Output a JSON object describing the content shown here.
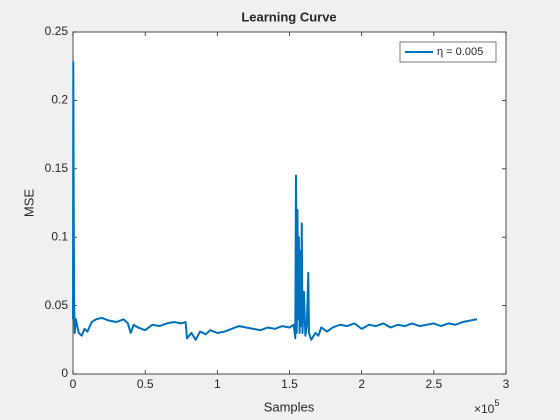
{
  "chart_data": {
    "type": "line",
    "title": "Learning Curve",
    "xlabel": "Samples",
    "ylabel": "MSE",
    "x_multiplier": {
      "base": "×10",
      "exponent": "5"
    },
    "xlim": [
      0,
      3
    ],
    "xticks": [
      0,
      0.5,
      1,
      1.5,
      2,
      2.5,
      3
    ],
    "ylim": [
      0,
      0.25
    ],
    "yticks": [
      0,
      0.05,
      0.1,
      0.15,
      0.2,
      0.25
    ],
    "legend": "upper right",
    "x": [
      0,
      0.002,
      0.005,
      0.008,
      0.012,
      0.02,
      0.04,
      0.06,
      0.08,
      0.1,
      0.13,
      0.16,
      0.2,
      0.25,
      0.3,
      0.35,
      0.38,
      0.4,
      0.42,
      0.45,
      0.5,
      0.55,
      0.6,
      0.65,
      0.7,
      0.75,
      0.78,
      0.79,
      0.82,
      0.85,
      0.88,
      0.92,
      0.95,
      1.0,
      1.05,
      1.1,
      1.15,
      1.2,
      1.25,
      1.3,
      1.35,
      1.4,
      1.45,
      1.5,
      1.53,
      1.54,
      1.545,
      1.55,
      1.555,
      1.56,
      1.565,
      1.57,
      1.575,
      1.58,
      1.585,
      1.59,
      1.6,
      1.61,
      1.62,
      1.63,
      1.635,
      1.65,
      1.68,
      1.7,
      1.72,
      1.76,
      1.8,
      1.85,
      1.9,
      1.95,
      2.0,
      2.05,
      2.1,
      2.15,
      2.2,
      2.25,
      2.3,
      2.35,
      2.4,
      2.45,
      2.5,
      2.55,
      2.6,
      2.65,
      2.7,
      2.75,
      2.8
    ],
    "series": [
      {
        "name": "η = 0.005",
        "color": "#0072bd",
        "values": [
          0.04,
          0.228,
          0.12,
          0.05,
          0.03,
          0.04,
          0.03,
          0.028,
          0.033,
          0.031,
          0.038,
          0.04,
          0.041,
          0.039,
          0.038,
          0.04,
          0.037,
          0.03,
          0.036,
          0.034,
          0.032,
          0.036,
          0.035,
          0.037,
          0.038,
          0.037,
          0.038,
          0.026,
          0.03,
          0.025,
          0.031,
          0.029,
          0.032,
          0.03,
          0.031,
          0.033,
          0.035,
          0.034,
          0.033,
          0.032,
          0.034,
          0.033,
          0.035,
          0.034,
          0.036,
          0.026,
          0.145,
          0.03,
          0.12,
          0.04,
          0.1,
          0.03,
          0.09,
          0.035,
          0.11,
          0.03,
          0.06,
          0.028,
          0.035,
          0.074,
          0.03,
          0.025,
          0.03,
          0.028,
          0.034,
          0.031,
          0.034,
          0.036,
          0.035,
          0.037,
          0.033,
          0.036,
          0.035,
          0.037,
          0.034,
          0.036,
          0.035,
          0.037,
          0.035,
          0.036,
          0.037,
          0.035,
          0.037,
          0.036,
          0.038,
          0.039,
          0.04
        ]
      }
    ]
  }
}
